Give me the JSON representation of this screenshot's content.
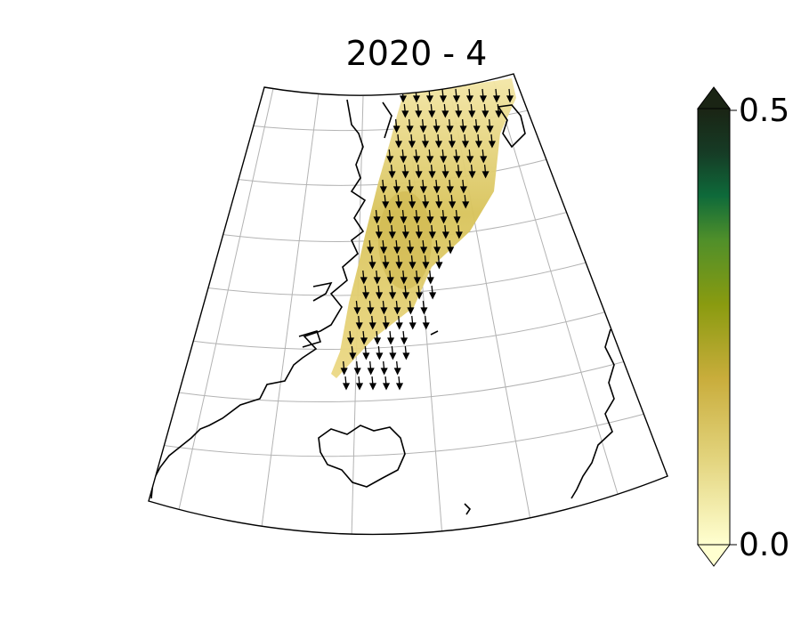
{
  "title": "2020 - 4",
  "map": {
    "projection": "conic",
    "graticule": true,
    "ice_shading_color_low": "#fffdd0",
    "ice_shading_color_mid": "#d9c35c",
    "vector_color": "#000000",
    "coastline_color": "#000000",
    "grid_color": "#b0b0b0"
  },
  "colorbar": {
    "min_label": "0.0",
    "max_label": "0.5",
    "extend": "both",
    "colors": [
      "#ffffd0",
      "#e2d37c",
      "#c9ad3c",
      "#8a9b10",
      "#4f8f2a",
      "#0e6a3a",
      "#163b25",
      "#1a2414"
    ]
  }
}
